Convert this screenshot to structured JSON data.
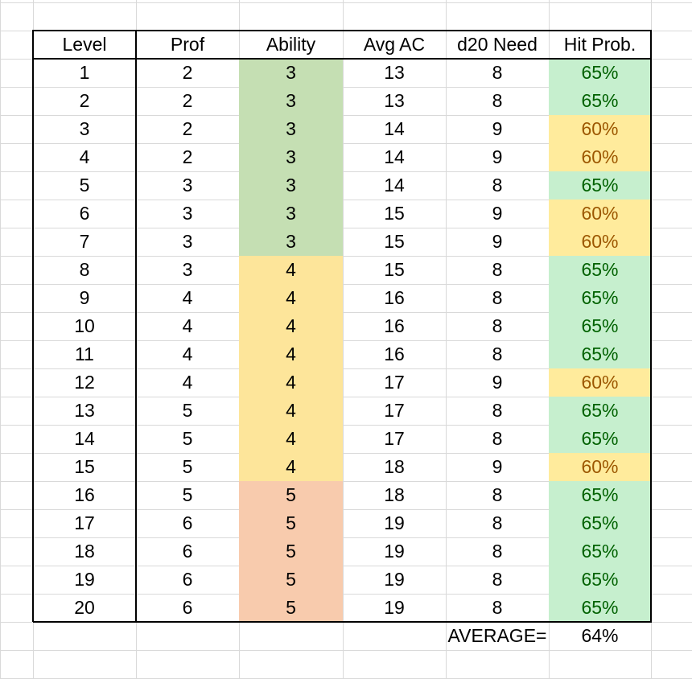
{
  "sheet": {
    "headers": [
      "Level",
      "Prof",
      "Ability",
      "Avg AC",
      "d20 Need",
      "Hit Prob."
    ],
    "rows": [
      {
        "level": "1",
        "prof": "2",
        "ability": "3",
        "ac": "13",
        "need": "8",
        "hit": "65%"
      },
      {
        "level": "2",
        "prof": "2",
        "ability": "3",
        "ac": "13",
        "need": "8",
        "hit": "65%"
      },
      {
        "level": "3",
        "prof": "2",
        "ability": "3",
        "ac": "14",
        "need": "9",
        "hit": "60%"
      },
      {
        "level": "4",
        "prof": "2",
        "ability": "3",
        "ac": "14",
        "need": "9",
        "hit": "60%"
      },
      {
        "level": "5",
        "prof": "3",
        "ability": "3",
        "ac": "14",
        "need": "8",
        "hit": "65%"
      },
      {
        "level": "6",
        "prof": "3",
        "ability": "3",
        "ac": "15",
        "need": "9",
        "hit": "60%"
      },
      {
        "level": "7",
        "prof": "3",
        "ability": "3",
        "ac": "15",
        "need": "9",
        "hit": "60%"
      },
      {
        "level": "8",
        "prof": "3",
        "ability": "4",
        "ac": "15",
        "need": "8",
        "hit": "65%"
      },
      {
        "level": "9",
        "prof": "4",
        "ability": "4",
        "ac": "16",
        "need": "8",
        "hit": "65%"
      },
      {
        "level": "10",
        "prof": "4",
        "ability": "4",
        "ac": "16",
        "need": "8",
        "hit": "65%"
      },
      {
        "level": "11",
        "prof": "4",
        "ability": "4",
        "ac": "16",
        "need": "8",
        "hit": "65%"
      },
      {
        "level": "12",
        "prof": "4",
        "ability": "4",
        "ac": "17",
        "need": "9",
        "hit": "60%"
      },
      {
        "level": "13",
        "prof": "5",
        "ability": "4",
        "ac": "17",
        "need": "8",
        "hit": "65%"
      },
      {
        "level": "14",
        "prof": "5",
        "ability": "4",
        "ac": "17",
        "need": "8",
        "hit": "65%"
      },
      {
        "level": "15",
        "prof": "5",
        "ability": "4",
        "ac": "18",
        "need": "9",
        "hit": "60%"
      },
      {
        "level": "16",
        "prof": "5",
        "ability": "5",
        "ac": "18",
        "need": "8",
        "hit": "65%"
      },
      {
        "level": "17",
        "prof": "6",
        "ability": "5",
        "ac": "19",
        "need": "8",
        "hit": "65%"
      },
      {
        "level": "18",
        "prof": "6",
        "ability": "5",
        "ac": "19",
        "need": "8",
        "hit": "65%"
      },
      {
        "level": "19",
        "prof": "6",
        "ability": "5",
        "ac": "19",
        "need": "8",
        "hit": "65%"
      },
      {
        "level": "20",
        "prof": "6",
        "ability": "5",
        "ac": "19",
        "need": "8",
        "hit": "65%"
      }
    ],
    "summary": {
      "label": "AVERAGE=",
      "value": "64%"
    }
  },
  "colors": {
    "gridline": "#d9d9d9",
    "ability_3_fill": "#c5dfb3",
    "ability_4_fill": "#fde59a",
    "ability_5_fill": "#f8cbad",
    "hit_good_fill": "#c6efce",
    "hit_good_text": "#006100",
    "hit_mid_fill": "#ffeb9c",
    "hit_mid_text": "#9c5700"
  }
}
